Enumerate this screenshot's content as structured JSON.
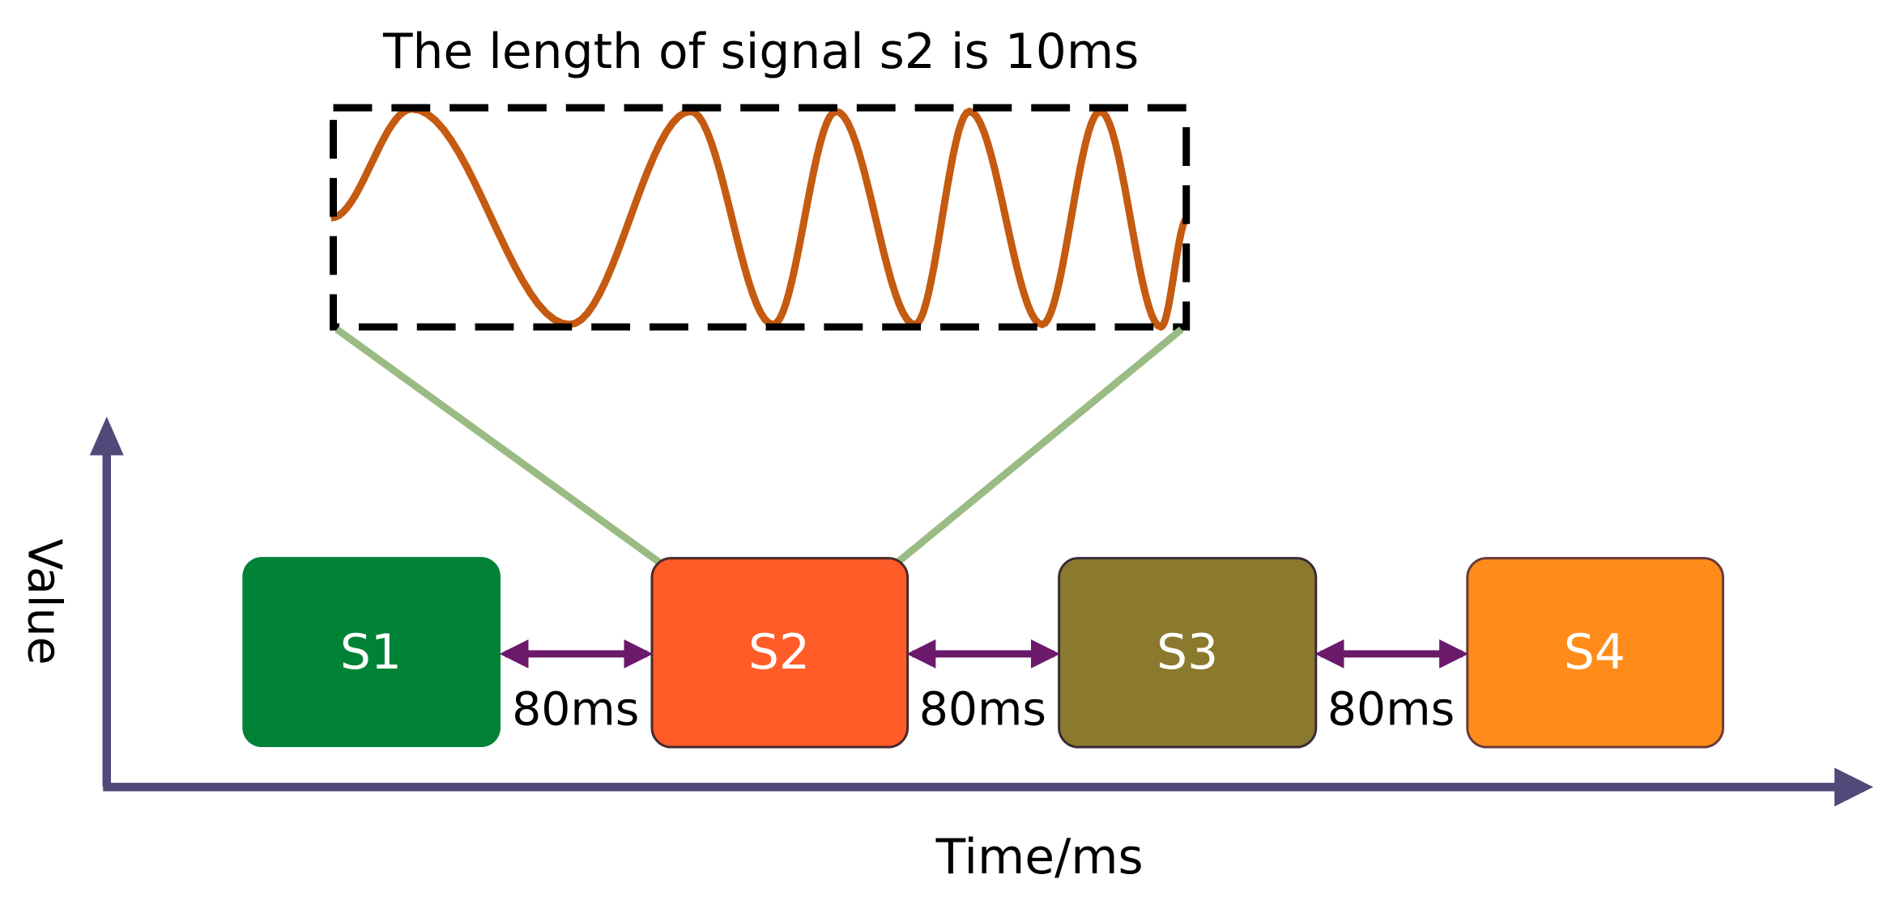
{
  "title": "The length of signal s2 is 10ms",
  "signals": [
    "S1",
    "S2",
    "S3",
    "S4"
  ],
  "gaps": [
    "80ms",
    "80ms",
    "80ms"
  ],
  "axes": {
    "y_label": "Value",
    "x_label": "Time/ms"
  }
}
